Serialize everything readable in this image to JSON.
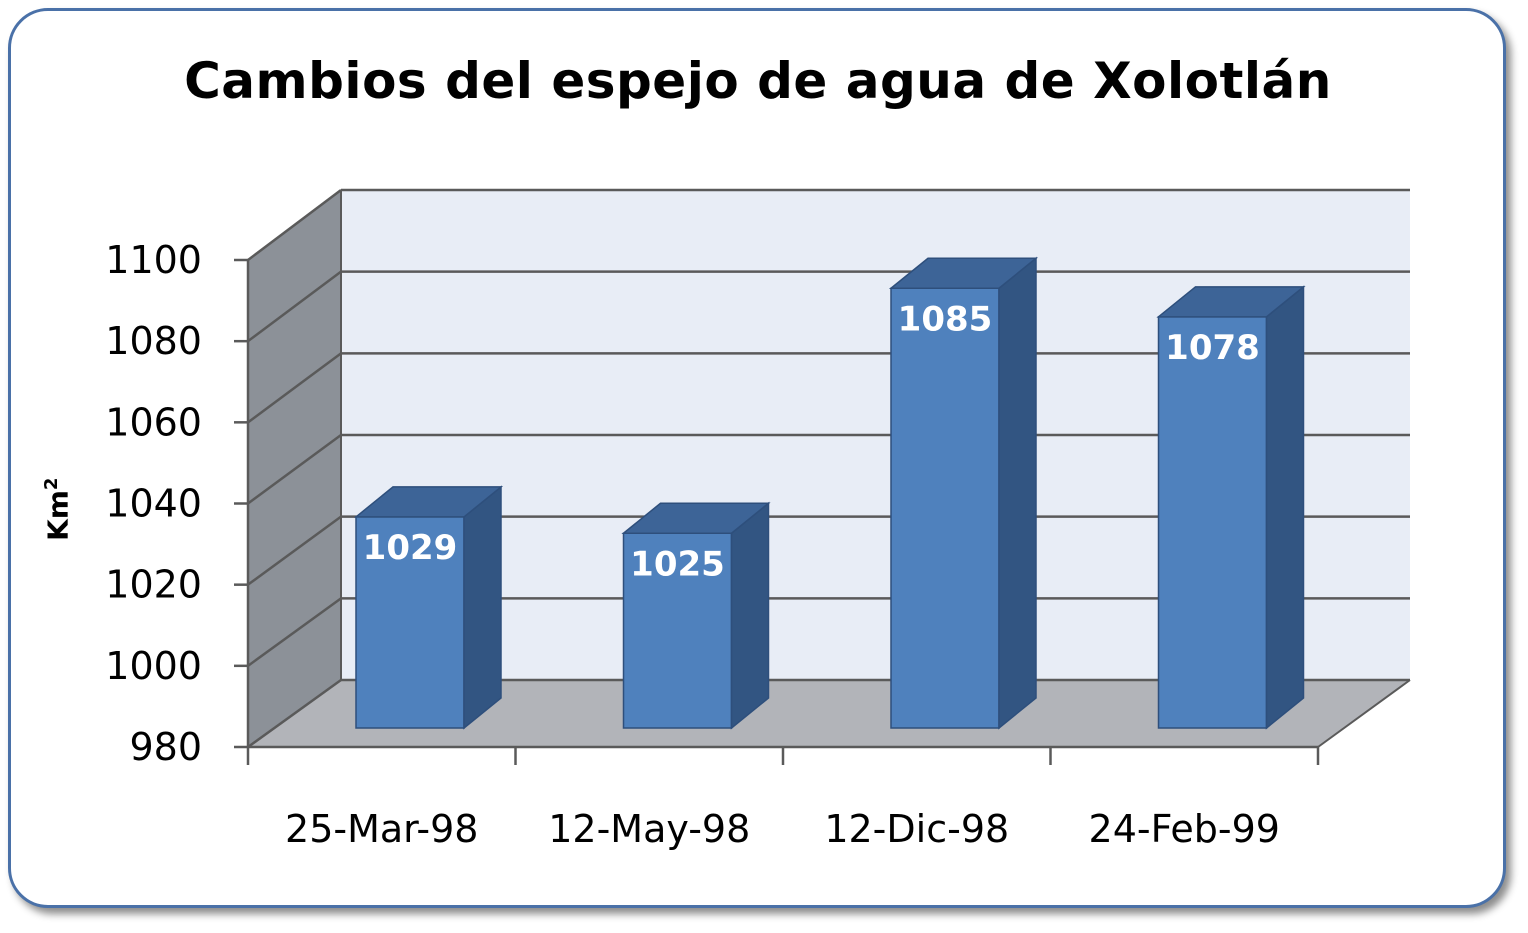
{
  "chart_data": {
    "type": "bar",
    "title": "Cambios del espejo de agua de Xolotlán",
    "ylabel_base": "Km",
    "ylabel_sup": "2",
    "categories": [
      "25-Mar-98",
      "12-May-98",
      "12-Dic-98",
      "24-Feb-99"
    ],
    "values": [
      1029,
      1025,
      1085,
      1078
    ],
    "data_labels": [
      "1029",
      "1025",
      "1085",
      "1078"
    ],
    "yticks": [
      "980",
      "1000",
      "1020",
      "1040",
      "1060",
      "1080",
      "1100"
    ],
    "ylim": [
      980,
      1100
    ],
    "grid": true,
    "style": "3d-column",
    "colors": {
      "bar_front": "#4f81bd",
      "bar_side": "#325582",
      "bar_top": "#3d6497",
      "back_wall": "#e8edf6",
      "side_wall": "#8c9198",
      "floor": "#b2b4b9",
      "frame_border": "#4a71a8"
    }
  }
}
